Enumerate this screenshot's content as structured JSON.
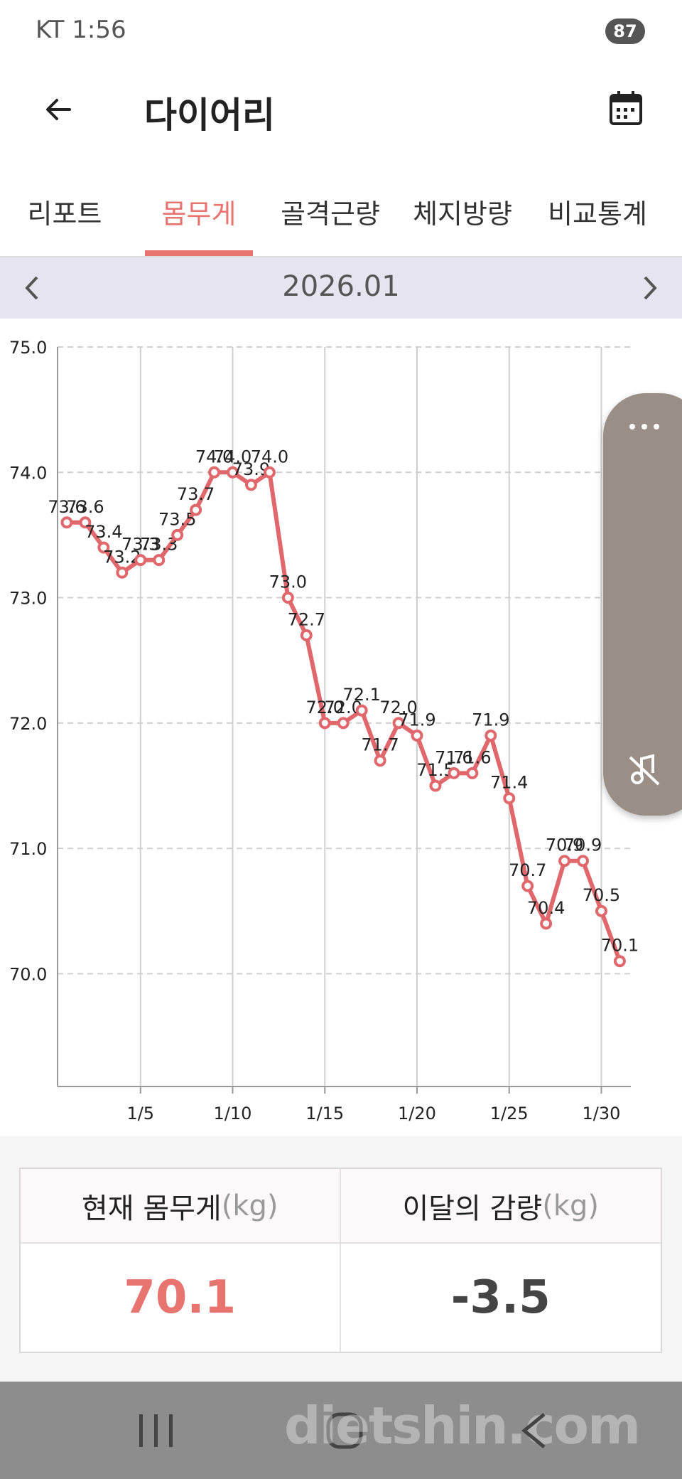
{
  "status_bar": {
    "carrier_time": "KT 1:56",
    "battery": "87"
  },
  "header": {
    "title": "다이어리"
  },
  "tabs": {
    "items": [
      "리포트",
      "몸무게",
      "골격근량",
      "체지방량",
      "비교통계"
    ],
    "active": 1
  },
  "month_nav": {
    "label": "2026.01"
  },
  "chart_data": {
    "type": "line",
    "color": "#e0676c",
    "grid": true,
    "x": [
      1,
      2,
      3,
      4,
      5,
      6,
      7,
      8,
      9,
      10,
      11,
      12,
      13,
      14,
      15,
      16,
      17,
      18,
      19,
      20,
      21,
      22,
      23,
      24,
      25,
      26,
      27,
      28,
      29,
      30,
      31
    ],
    "values": [
      73.6,
      73.6,
      73.4,
      73.2,
      73.3,
      73.3,
      73.5,
      73.7,
      74.0,
      74.0,
      73.9,
      74.0,
      73.0,
      72.7,
      72.0,
      72.0,
      72.1,
      71.7,
      72.0,
      71.9,
      71.5,
      71.6,
      71.6,
      71.9,
      71.4,
      70.7,
      70.4,
      70.9,
      70.9,
      70.5,
      70.1
    ],
    "value_labels": [
      "73.6",
      "73.6",
      "73.4",
      "73.2",
      "73.3",
      "73.3",
      "73.5",
      "73.7",
      "74.0",
      "74.0",
      "73.9",
      "74.0",
      "73.0",
      "72.7",
      "72.0",
      "72.0",
      "72.1",
      "71.7",
      "72.0",
      "71.9",
      "71.5",
      "71.6",
      "71.6",
      "71.9",
      "71.4",
      "70.7",
      "70.4",
      "70.9",
      "70.9",
      "70.5",
      "70.1"
    ],
    "xlim": [
      0.5,
      31.6
    ],
    "ylim": [
      69.1,
      75.0
    ],
    "xticks": [
      {
        "value": 5,
        "label": "1/5"
      },
      {
        "value": 10,
        "label": "1/10"
      },
      {
        "value": 15,
        "label": "1/15"
      },
      {
        "value": 20,
        "label": "1/20"
      },
      {
        "value": 25,
        "label": "1/25"
      },
      {
        "value": 30,
        "label": "1/30"
      }
    ],
    "yticks": [
      {
        "value": 70,
        "label": "70.0"
      },
      {
        "value": 71,
        "label": "71.0"
      },
      {
        "value": 72,
        "label": "72.0"
      },
      {
        "value": 73,
        "label": "73.0"
      },
      {
        "value": 74,
        "label": "74.0"
      },
      {
        "value": 75,
        "label": "75.0"
      }
    ]
  },
  "summary": {
    "columns": [
      {
        "label": "현재 몸무게",
        "unit": "(kg)",
        "value": "70.1"
      },
      {
        "label": "이달의 감량",
        "unit": "(kg)",
        "value": "-3.5"
      }
    ]
  },
  "watermark": "dietshin.com"
}
